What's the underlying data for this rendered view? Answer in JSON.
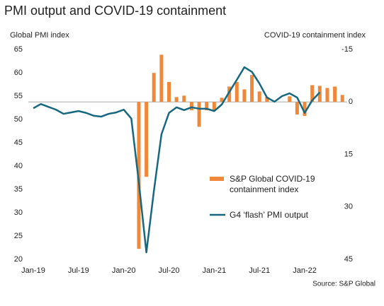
{
  "chart_data": {
    "type": "combo",
    "title": "PMI output and COVID-19 containment",
    "y_axis_label": "Global PMI index",
    "y2_axis_label": "COVID-19 containment index",
    "source": "Source: S&P Global",
    "categories": [
      "Jan-19",
      null,
      null,
      null,
      null,
      null,
      "Jul-19",
      null,
      null,
      null,
      null,
      null,
      "Jan-20",
      null,
      null,
      null,
      null,
      null,
      "Jul-20",
      null,
      null,
      null,
      null,
      null,
      "Jan-21",
      null,
      null,
      null,
      null,
      null,
      "Jul-21",
      null,
      null,
      null,
      null,
      null,
      "Jan-22",
      null,
      null,
      null,
      null,
      null
    ],
    "ylim": [
      20,
      65
    ],
    "yticks": [
      20,
      25,
      30,
      35,
      40,
      45,
      50,
      55,
      60,
      65
    ],
    "y2lim": [
      45,
      -15
    ],
    "y2ticks": [
      -15,
      0,
      15,
      30,
      45
    ],
    "legend": "right",
    "series": [
      {
        "name": "S&P Global COVID-19 containment index",
        "type": "bar",
        "axis": "y2",
        "color": "#f0883a",
        "values": [
          null,
          null,
          null,
          null,
          null,
          null,
          null,
          null,
          null,
          null,
          null,
          null,
          null,
          null,
          42.0,
          21.4,
          -8.3,
          -13.5,
          -5.7,
          -1.4,
          -1.8,
          2.4,
          7.1,
          2.4,
          2.4,
          -1.2,
          -4.4,
          -5.7,
          -3.6,
          -7.7,
          -3.0,
          -1.4,
          null,
          null,
          -1.6,
          3.6,
          4.0,
          -4.8,
          -4.6,
          -4.0,
          -4.4,
          -2.0
        ]
      },
      {
        "name": "G4 ‘flash’ PMI output",
        "type": "line",
        "color": "#17687f",
        "values": [
          52.4,
          53.3,
          52.7,
          52.1,
          51.2,
          51.5,
          51.8,
          51.4,
          50.8,
          50.6,
          51.2,
          51.5,
          52.1,
          50.2,
          36.5,
          21.5,
          34.7,
          46.8,
          51.4,
          52.6,
          52.0,
          52.6,
          52.3,
          52.3,
          51.8,
          53.2,
          55.9,
          58.5,
          61.2,
          60.2,
          57.7,
          54.7,
          53.8,
          55.0,
          55.6,
          54.7,
          51.4,
          54.1,
          55.8,
          null,
          null,
          null
        ]
      }
    ]
  }
}
